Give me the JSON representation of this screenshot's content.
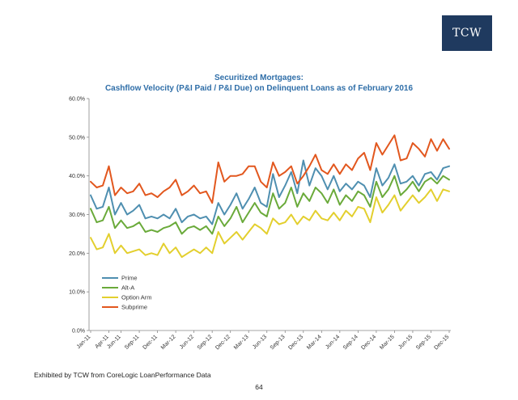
{
  "logo": {
    "text": "TCW"
  },
  "footer": {
    "source": "Exhibited by TCW from CoreLogic LoanPerformance Data",
    "page": "64"
  },
  "colors": {
    "prime": "#4f8fb0",
    "alta": "#6aaa3a",
    "option_arm": "#e3cf2e",
    "subprime": "#e2571e",
    "title": "#2f6ea8",
    "axis": "#888888"
  },
  "chart_data": {
    "type": "line",
    "title": "Securitized Mortgages:",
    "subtitle": "Cashflow Velocity (P&I Paid / P&I Due) on Delinquent Loans as of February 2016",
    "xlabel": "",
    "ylabel": "",
    "ylim": [
      0,
      60
    ],
    "yticks": [
      "0.0%",
      "10.0%",
      "20.0%",
      "30.0%",
      "40.0%",
      "50.0%",
      "60.0%"
    ],
    "x_tick_labels": [
      "Jan-11",
      "Apr-11",
      "Jun-11",
      "Sep-11",
      "Dec-11",
      "Mar-12",
      "Jun-12",
      "Sep-12",
      "Dec-12",
      "Mar-13",
      "Jun-13",
      "Sep-13",
      "Dec-13",
      "Mar-14",
      "Jun-14",
      "Sep-14",
      "Dec-14",
      "Mar-15",
      "Jun-15",
      "Sep-15",
      "Dec-15"
    ],
    "x_tick_index": [
      0,
      3,
      5,
      8,
      11,
      14,
      17,
      20,
      23,
      26,
      29,
      32,
      35,
      38,
      41,
      44,
      47,
      50,
      53,
      56,
      59
    ],
    "grid": false,
    "legend_position": "lower-left",
    "series": [
      {
        "key": "prime",
        "name": "Prime",
        "values": [
          35.0,
          31.5,
          32.0,
          37.0,
          30.0,
          33.0,
          30.0,
          31.0,
          32.5,
          29.0,
          29.5,
          29.0,
          30.0,
          29.0,
          31.5,
          28.0,
          29.5,
          30.0,
          29.0,
          29.5,
          27.5,
          33.0,
          30.0,
          32.5,
          35.5,
          31.5,
          34.0,
          37.0,
          33.0,
          32.0,
          40.5,
          34.5,
          37.5,
          41.0,
          35.5,
          44.0,
          37.5,
          42.0,
          40.0,
          36.5,
          40.0,
          36.0,
          38.0,
          36.5,
          38.5,
          37.5,
          34.5,
          42.0,
          37.5,
          39.5,
          43.0,
          38.0,
          38.5,
          40.0,
          37.5,
          40.5,
          41.0,
          39.0,
          42.0,
          42.5
        ]
      },
      {
        "key": "alta",
        "name": "Alt-A",
        "values": [
          31.5,
          28.0,
          28.5,
          32.0,
          26.5,
          28.5,
          26.5,
          27.0,
          28.0,
          25.5,
          26.0,
          25.5,
          26.5,
          27.0,
          28.0,
          25.0,
          26.5,
          27.0,
          26.0,
          27.0,
          25.0,
          29.5,
          27.0,
          29.0,
          32.0,
          28.0,
          30.5,
          33.0,
          30.5,
          29.5,
          35.5,
          31.5,
          33.0,
          37.0,
          32.0,
          35.5,
          33.5,
          37.0,
          35.5,
          33.0,
          36.5,
          32.5,
          35.0,
          33.5,
          36.0,
          35.0,
          32.0,
          38.5,
          34.5,
          36.5,
          40.0,
          35.0,
          36.5,
          38.5,
          36.0,
          38.5,
          39.5,
          38.0,
          40.0,
          39.0
        ]
      },
      {
        "key": "option_arm",
        "name": "Option Arm",
        "values": [
          24.0,
          21.0,
          21.5,
          25.0,
          20.0,
          22.0,
          20.0,
          20.5,
          21.0,
          19.5,
          20.0,
          19.5,
          22.5,
          20.0,
          21.5,
          19.0,
          20.0,
          21.0,
          20.0,
          21.5,
          20.0,
          25.5,
          22.5,
          24.0,
          25.5,
          23.5,
          25.5,
          27.5,
          26.5,
          25.0,
          29.0,
          27.5,
          28.0,
          30.0,
          27.5,
          29.5,
          28.5,
          31.0,
          29.0,
          28.5,
          30.5,
          28.5,
          31.0,
          29.5,
          32.0,
          31.5,
          28.0,
          34.5,
          30.5,
          32.5,
          35.0,
          31.0,
          33.0,
          35.0,
          33.0,
          34.5,
          36.5,
          33.5,
          36.5,
          36.0
        ]
      },
      {
        "key": "subprime",
        "name": "Subprime",
        "values": [
          38.5,
          37.0,
          37.5,
          42.5,
          35.0,
          37.0,
          35.5,
          36.0,
          38.0,
          35.0,
          35.5,
          34.5,
          36.0,
          37.0,
          39.0,
          35.0,
          36.0,
          37.5,
          35.5,
          36.0,
          33.0,
          43.5,
          38.5,
          40.0,
          40.0,
          40.5,
          42.5,
          42.5,
          38.5,
          37.0,
          43.5,
          40.0,
          41.0,
          42.5,
          38.0,
          40.0,
          42.5,
          45.5,
          41.5,
          40.5,
          43.0,
          40.5,
          43.0,
          41.5,
          44.5,
          46.0,
          41.5,
          48.5,
          45.5,
          48.0,
          50.5,
          44.0,
          44.5,
          48.5,
          47.0,
          45.0,
          49.5,
          46.5,
          49.5,
          47.0
        ]
      }
    ]
  }
}
